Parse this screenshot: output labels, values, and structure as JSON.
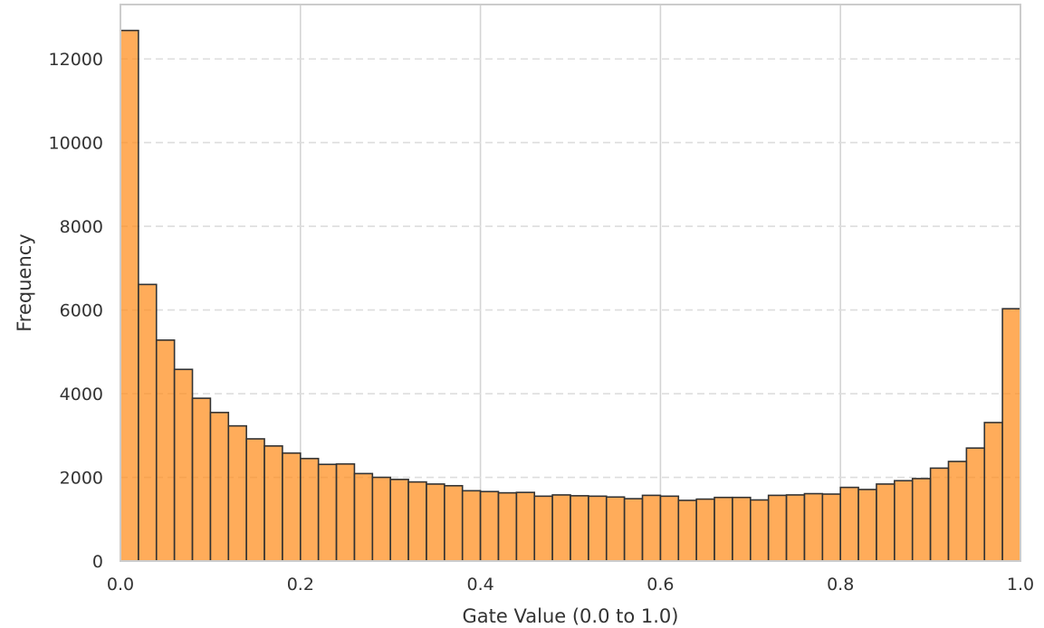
{
  "chart_data": {
    "type": "bar",
    "xlabel": "Gate Value (0.0 to 1.0)",
    "ylabel": "Frequency",
    "xlim": [
      0.0,
      1.0
    ],
    "ylim": [
      0,
      13300
    ],
    "xticks": [
      0.0,
      0.2,
      0.4,
      0.6,
      0.8,
      1.0
    ],
    "xtick_labels": [
      "0.0",
      "0.2",
      "0.4",
      "0.6",
      "0.8",
      "1.0"
    ],
    "yticks": [
      0,
      2000,
      4000,
      6000,
      8000,
      10000,
      12000
    ],
    "ytick_labels": [
      "0",
      "2000",
      "4000",
      "6000",
      "8000",
      "10000",
      "12000"
    ],
    "bin_width": 0.02,
    "bin_starts": [
      0.0,
      0.02,
      0.04,
      0.06,
      0.08,
      0.1,
      0.12,
      0.14,
      0.16,
      0.18,
      0.2,
      0.22,
      0.24,
      0.26,
      0.28,
      0.3,
      0.32,
      0.34,
      0.36,
      0.38,
      0.4,
      0.42,
      0.44,
      0.46,
      0.48,
      0.5,
      0.52,
      0.54,
      0.56,
      0.58,
      0.6,
      0.62,
      0.64,
      0.66,
      0.68,
      0.7,
      0.72,
      0.74,
      0.76,
      0.78,
      0.8,
      0.82,
      0.84,
      0.86,
      0.88,
      0.9,
      0.92,
      0.94,
      0.96,
      0.98
    ],
    "values": [
      12680,
      6610,
      5280,
      4580,
      3890,
      3550,
      3230,
      2920,
      2750,
      2580,
      2450,
      2310,
      2320,
      2090,
      2000,
      1950,
      1890,
      1840,
      1800,
      1680,
      1660,
      1630,
      1640,
      1550,
      1580,
      1560,
      1550,
      1530,
      1490,
      1570,
      1550,
      1450,
      1480,
      1520,
      1520,
      1460,
      1570,
      1580,
      1610,
      1600,
      1760,
      1710,
      1840,
      1920,
      1970,
      2220,
      2380,
      2700,
      3310,
      6030
    ],
    "grid": {
      "x": true,
      "y": true,
      "y_style": "dashed"
    },
    "bar_color": "#ff8c1a",
    "edge_color": "#333333"
  }
}
